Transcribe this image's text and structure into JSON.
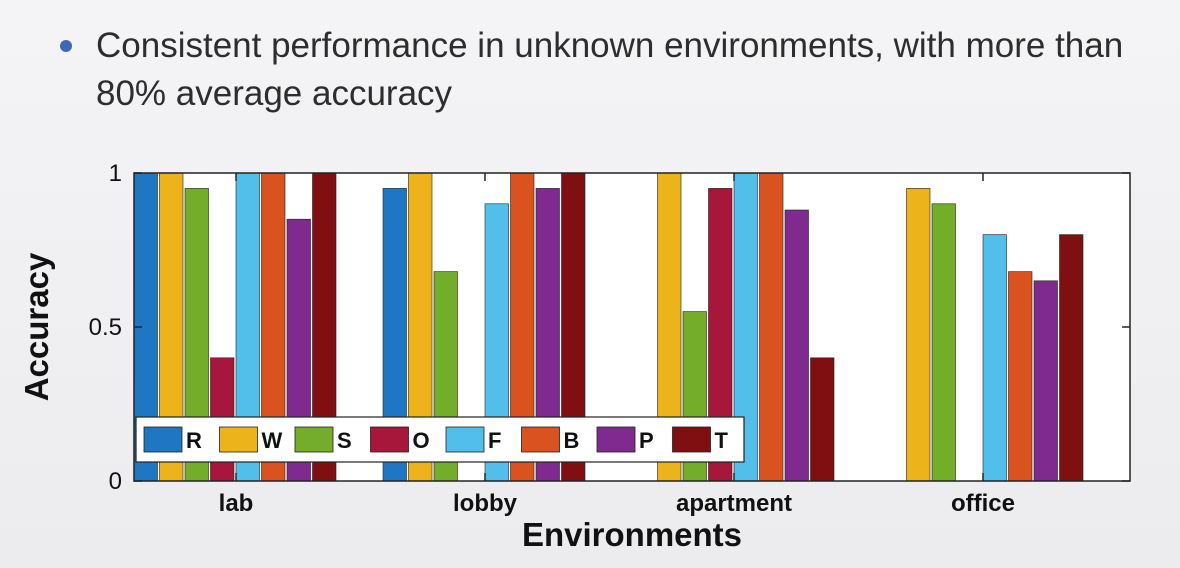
{
  "slide": {
    "bullet": "Consistent performance in unknown environments, with more than 80% average accuracy",
    "bullet_color": "#3d6ab5"
  },
  "chart_data": {
    "type": "bar",
    "categories": [
      "lab",
      "lobby",
      "apartment",
      "office"
    ],
    "series": [
      {
        "name": "R",
        "color": "#1f77c4",
        "values": [
          1.0,
          0.95,
          0.0,
          0.0
        ]
      },
      {
        "name": "W",
        "color": "#ecb31b",
        "values": [
          1.0,
          1.0,
          1.0,
          0.95
        ]
      },
      {
        "name": "S",
        "color": "#74ad2a",
        "values": [
          0.95,
          0.68,
          0.55,
          0.9
        ]
      },
      {
        "name": "O",
        "color": "#a6173b",
        "values": [
          0.4,
          0.0,
          0.95,
          0.0
        ]
      },
      {
        "name": "F",
        "color": "#52bfeb",
        "values": [
          1.0,
          0.9,
          1.0,
          0.8
        ]
      },
      {
        "name": "B",
        "color": "#d9521f",
        "values": [
          1.0,
          1.0,
          1.0,
          0.68
        ]
      },
      {
        "name": "P",
        "color": "#7e2a8e",
        "values": [
          0.85,
          0.95,
          0.88,
          0.65
        ]
      },
      {
        "name": "T",
        "color": "#7f0f10",
        "values": [
          1.0,
          1.0,
          0.4,
          0.8
        ]
      }
    ],
    "title": "",
    "xlabel": "Environments",
    "ylabel": "Accuracy",
    "ylim": [
      0,
      1
    ],
    "yticks": [
      {
        "value": 0,
        "label": "0"
      },
      {
        "value": 0.5,
        "label": "0.5"
      },
      {
        "value": 1,
        "label": "1"
      }
    ],
    "grid": false,
    "legend": "bottom-left, horizontal"
  }
}
